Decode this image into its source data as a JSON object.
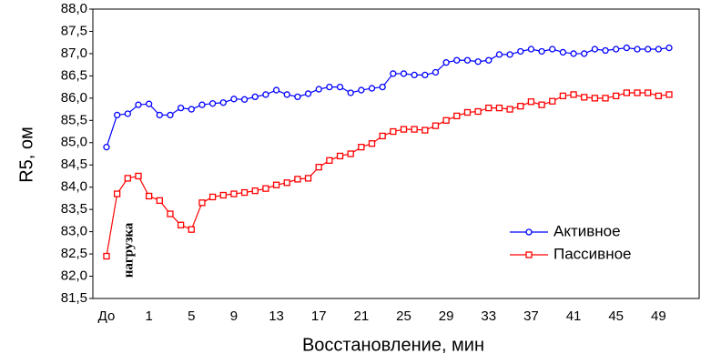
{
  "chart_data": {
    "type": "line",
    "ylabel": "R5, ом",
    "xlabel": "Восстановление, мин",
    "annotation": "нагрузка",
    "categories": [
      "До",
      null,
      null,
      null,
      "1",
      null,
      null,
      null,
      "5",
      null,
      null,
      null,
      "9",
      null,
      null,
      null,
      "13",
      null,
      null,
      null,
      "17",
      null,
      null,
      null,
      "21",
      null,
      null,
      null,
      "25",
      null,
      null,
      null,
      "29",
      null,
      null,
      null,
      "33",
      null,
      null,
      null,
      "37",
      null,
      null,
      null,
      "41",
      null,
      null,
      null,
      "45",
      null,
      null,
      null,
      "49",
      null
    ],
    "series": [
      {
        "name": "Активное",
        "color": "#0000ff",
        "marker": "circle",
        "values": [
          84.9,
          85.62,
          85.65,
          85.85,
          85.87,
          85.62,
          85.62,
          85.78,
          85.75,
          85.85,
          85.88,
          85.9,
          85.98,
          85.97,
          86.03,
          86.08,
          86.18,
          86.08,
          86.03,
          86.1,
          86.2,
          86.25,
          86.25,
          86.12,
          86.18,
          86.22,
          86.25,
          86.55,
          86.55,
          86.52,
          86.52,
          86.58,
          86.8,
          86.85,
          86.85,
          86.82,
          86.85,
          86.98,
          86.98,
          87.05,
          87.1,
          87.05,
          87.1,
          87.03,
          87.0,
          87.0,
          87.1,
          87.07,
          87.1,
          87.13,
          87.1,
          87.1,
          87.1,
          87.13
        ]
      },
      {
        "name": "Пассивное",
        "color": "#ff0000",
        "marker": "square",
        "values": [
          82.45,
          83.85,
          84.2,
          84.25,
          83.8,
          83.7,
          83.4,
          83.15,
          83.05,
          83.65,
          83.78,
          83.82,
          83.85,
          83.88,
          83.92,
          83.97,
          84.05,
          84.1,
          84.18,
          84.2,
          84.45,
          84.6,
          84.7,
          84.75,
          84.9,
          84.98,
          85.15,
          85.25,
          85.3,
          85.3,
          85.28,
          85.38,
          85.5,
          85.6,
          85.68,
          85.7,
          85.78,
          85.78,
          85.75,
          85.82,
          85.92,
          85.85,
          85.93,
          86.05,
          86.08,
          86.02,
          86.0,
          86.0,
          86.05,
          86.12,
          86.12,
          86.12,
          86.05,
          86.08
        ]
      }
    ],
    "ylim": [
      81.5,
      88.0
    ],
    "yticks": [
      {
        "value": 81.5,
        "label": "81,5"
      },
      {
        "value": 82.0,
        "label": "82,0"
      },
      {
        "value": 82.5,
        "label": "82,5"
      },
      {
        "value": 83.0,
        "label": "83,0"
      },
      {
        "value": 83.5,
        "label": "83,5"
      },
      {
        "value": 84.0,
        "label": "84,0"
      },
      {
        "value": 84.5,
        "label": "84,5"
      },
      {
        "value": 85.0,
        "label": "85,0"
      },
      {
        "value": 85.5,
        "label": "85,5"
      },
      {
        "value": 86.0,
        "label": "86,0"
      },
      {
        "value": 86.5,
        "label": "86,5"
      },
      {
        "value": 87.0,
        "label": "87,0"
      },
      {
        "value": 87.5,
        "label": "87,5"
      },
      {
        "value": 88.0,
        "label": "88,0"
      }
    ],
    "grid": false,
    "legend": "right"
  }
}
